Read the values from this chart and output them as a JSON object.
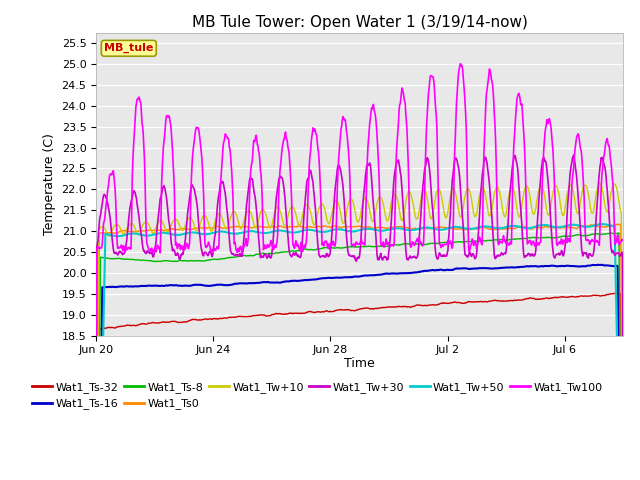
{
  "title": "MB Tule Tower: Open Water 1 (3/19/14-now)",
  "xlabel": "Time",
  "ylabel": "Temperature (C)",
  "ylim": [
    18.5,
    25.75
  ],
  "yticks": [
    18.5,
    19.0,
    19.5,
    20.0,
    20.5,
    21.0,
    21.5,
    22.0,
    22.5,
    23.0,
    23.5,
    24.0,
    24.5,
    25.0,
    25.5
  ],
  "x_tick_labels": [
    "Jun 20",
    "Jun 24",
    "Jun 28",
    "Jul 2",
    "Jul 6"
  ],
  "x_tick_positions": [
    0,
    4,
    8,
    12,
    16
  ],
  "legend_label": "MB_tule",
  "series": {
    "Wat1_Ts-32": {
      "color": "#cc0000",
      "lw": 1.0
    },
    "Wat1_Ts-16": {
      "color": "#0000cc",
      "lw": 1.5
    },
    "Wat1_Ts-8": {
      "color": "#00bb00",
      "lw": 1.0
    },
    "Wat1_Ts0": {
      "color": "#ff8800",
      "lw": 1.0
    },
    "Wat1_Tw+10": {
      "color": "#cccc00",
      "lw": 1.0
    },
    "Wat1_Tw+30": {
      "color": "#cc00cc",
      "lw": 1.2
    },
    "Wat1_Tw+50": {
      "color": "#00cccc",
      "lw": 1.5
    },
    "Wat1_Tw100": {
      "color": "#ff00ff",
      "lw": 1.2
    }
  },
  "legend_colors": {
    "Wat1_Ts-32": "#cc0000",
    "Wat1_Ts-16": "#0000cc",
    "Wat1_Ts-8": "#00bb00",
    "Wat1_Ts0": "#ff8800",
    "Wat1_Tw+10": "#cccc00",
    "Wat1_Tw+30": "#cc00cc",
    "Wat1_Tw+50": "#00cccc",
    "Wat1_Tw100": "#ff00ff"
  },
  "axes_facecolor": "#e8e8e8",
  "fig_facecolor": "#ffffff"
}
